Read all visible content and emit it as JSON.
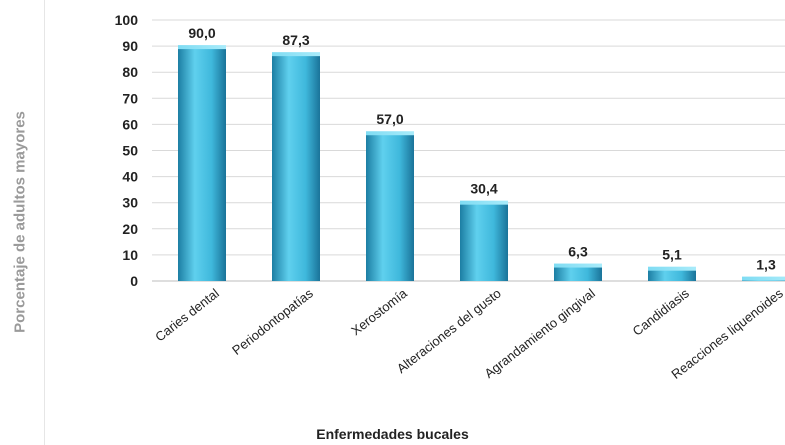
{
  "chart_data": {
    "type": "bar",
    "categories": [
      "Caries dental",
      "Periodontopatías",
      "Xerostomía",
      "Alteraciones del gusto",
      "Agrandamiento gingival",
      "Candidiasis",
      "Reacciones liquenoides"
    ],
    "values": [
      90.0,
      87.3,
      57.0,
      30.4,
      6.3,
      5.1,
      1.3
    ],
    "value_labels": [
      "90,0",
      "87,3",
      "57,0",
      "30,4",
      "6,3",
      "5,1",
      "1,3"
    ],
    "yticks": [
      "0",
      "10",
      "20",
      "30",
      "40",
      "50",
      "60",
      "70",
      "80",
      "90",
      "100"
    ],
    "ylim": [
      0,
      100
    ],
    "xlabel": "Enfermedades bucales",
    "ylabel": "Porcentaje de adultos mayores",
    "grid": true,
    "colors": {
      "bar_light": "#5fd0ee",
      "bar_mid": "#2fa9cf",
      "bar_dark": "#1c7ea3",
      "grid": "#d9d9d9"
    }
  }
}
